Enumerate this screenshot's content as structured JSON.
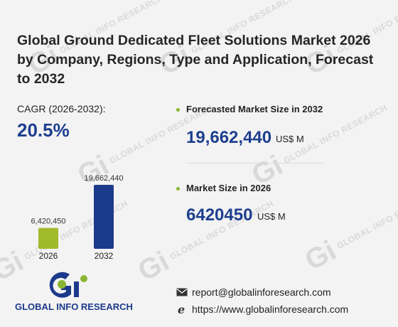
{
  "title": "Global Ground Dedicated Fleet Solutions Market 2026 by Company, Regions, Type and Application, Forecast to 2032",
  "cagr": {
    "label": "CAGR (2026-2032):",
    "value": "20.5%"
  },
  "stats": [
    {
      "label": "Forecasted Market Size in 2032",
      "value": "19,662,440",
      "unit": "US$ M"
    },
    {
      "label": "Market Size in 2026",
      "value": "6420450",
      "unit": "US$ M"
    }
  ],
  "chart_data": {
    "type": "bar",
    "categories": [
      "2026",
      "2032"
    ],
    "values": [
      6420450,
      19662440
    ],
    "data_labels": [
      "6,420,450",
      "19,662,440"
    ],
    "colors": [
      "#a1ba2a",
      "#1c3a8c"
    ],
    "ylim": [
      0,
      19662440
    ]
  },
  "brand": {
    "name": "GLOBAL INFO RESEARCH",
    "mark": "Gi",
    "watermark": "GLOBAL INFO RESEARCH"
  },
  "contact": {
    "email": "report@globalinforesearch.com",
    "website": "https://www.globalinforesearch.com"
  },
  "icons": {
    "email": "envelope-icon",
    "website": "browser-e-icon"
  },
  "colors": {
    "accent_blue": "#1d3f8f",
    "accent_green": "#8ab532",
    "background": "#f3f3f3"
  }
}
